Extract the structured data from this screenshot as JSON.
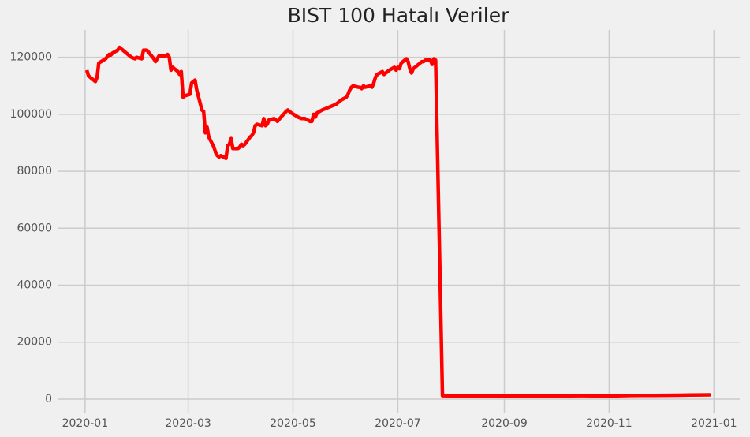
{
  "chart_data": {
    "type": "line",
    "title": "BIST 100 Hatalı Veriler",
    "color": "#ff0000",
    "grid": true,
    "xlim": [
      "2019-12-16",
      "2021-01-16"
    ],
    "ylim": [
      -5000,
      129600
    ],
    "xticks": [
      {
        "value": "2020-01-01",
        "label": "2020-01"
      },
      {
        "value": "2020-03-01",
        "label": "2020-03"
      },
      {
        "value": "2020-05-01",
        "label": "2020-05"
      },
      {
        "value": "2020-07-01",
        "label": "2020-07"
      },
      {
        "value": "2020-09-01",
        "label": "2020-09"
      },
      {
        "value": "2020-11-01",
        "label": "2020-11"
      },
      {
        "value": "2021-01-01",
        "label": "2021-01"
      }
    ],
    "yticks": [
      0,
      20000,
      40000,
      60000,
      80000,
      100000,
      120000
    ],
    "x": [
      "2020-01-02",
      "2020-01-03",
      "2020-01-06",
      "2020-01-07",
      "2020-01-08",
      "2020-01-09",
      "2020-01-13",
      "2020-01-15",
      "2020-01-16",
      "2020-01-17",
      "2020-01-20",
      "2020-01-21",
      "2020-01-23",
      "2020-01-24",
      "2020-01-27",
      "2020-01-28",
      "2020-01-30",
      "2020-01-31",
      "2020-02-03",
      "2020-02-04",
      "2020-02-06",
      "2020-02-10",
      "2020-02-11",
      "2020-02-12",
      "2020-02-13",
      "2020-02-17",
      "2020-02-18",
      "2020-02-19",
      "2020-02-20",
      "2020-02-21",
      "2020-02-24",
      "2020-02-25",
      "2020-02-26",
      "2020-02-27",
      "2020-02-28",
      "2020-03-02",
      "2020-03-03",
      "2020-03-04",
      "2020-03-05",
      "2020-03-06",
      "2020-03-09",
      "2020-03-10",
      "2020-03-11",
      "2020-03-12",
      "2020-03-13",
      "2020-03-16",
      "2020-03-17",
      "2020-03-18",
      "2020-03-19",
      "2020-03-20",
      "2020-03-23",
      "2020-03-24",
      "2020-03-25",
      "2020-03-26",
      "2020-03-27",
      "2020-03-30",
      "2020-03-31",
      "2020-04-01",
      "2020-04-02",
      "2020-04-03",
      "2020-04-06",
      "2020-04-07",
      "2020-04-08",
      "2020-04-09",
      "2020-04-10",
      "2020-04-13",
      "2020-04-14",
      "2020-04-15",
      "2020-04-16",
      "2020-04-17",
      "2020-04-20",
      "2020-04-21",
      "2020-04-22",
      "2020-04-24",
      "2020-04-27",
      "2020-04-28",
      "2020-04-29",
      "2020-04-30",
      "2020-05-04",
      "2020-05-06",
      "2020-05-08",
      "2020-05-11",
      "2020-05-12",
      "2020-05-13",
      "2020-05-14",
      "2020-05-15",
      "2020-05-18",
      "2020-05-20",
      "2020-05-22",
      "2020-05-26",
      "2020-05-28",
      "2020-05-29",
      "2020-06-01",
      "2020-06-02",
      "2020-06-03",
      "2020-06-04",
      "2020-06-05",
      "2020-06-08",
      "2020-06-09",
      "2020-06-10",
      "2020-06-11",
      "2020-06-12",
      "2020-06-15",
      "2020-06-16",
      "2020-06-17",
      "2020-06-18",
      "2020-06-19",
      "2020-06-22",
      "2020-06-23",
      "2020-06-24",
      "2020-06-25",
      "2020-06-26",
      "2020-06-29",
      "2020-06-30",
      "2020-07-01",
      "2020-07-02",
      "2020-07-03",
      "2020-07-06",
      "2020-07-07",
      "2020-07-08",
      "2020-07-09",
      "2020-07-10",
      "2020-07-13",
      "2020-07-14",
      "2020-07-15",
      "2020-07-16",
      "2020-07-17",
      "2020-07-20",
      "2020-07-21",
      "2020-07-22",
      "2020-07-23",
      "2020-07-27",
      "2020-07-31",
      "2020-08-07",
      "2020-08-14",
      "2020-08-21",
      "2020-08-28",
      "2020-09-04",
      "2020-09-11",
      "2020-09-18",
      "2020-09-25",
      "2020-10-02",
      "2020-10-09",
      "2020-10-16",
      "2020-10-23",
      "2020-10-30",
      "2020-11-06",
      "2020-11-13",
      "2020-11-20",
      "2020-11-27",
      "2020-12-04",
      "2020-12-11",
      "2020-12-18",
      "2020-12-25",
      "2020-12-30"
    ],
    "values": [
      115500,
      113500,
      112000,
      111500,
      113000,
      118000,
      119500,
      121000,
      120800,
      121500,
      122500,
      123500,
      122500,
      122000,
      120500,
      120000,
      119500,
      120000,
      119500,
      122500,
      122500,
      119500,
      118500,
      119500,
      120500,
      120500,
      121000,
      120000,
      115500,
      116500,
      115000,
      114000,
      115000,
      106000,
      106500,
      107000,
      111000,
      111500,
      112000,
      108500,
      101500,
      101000,
      93500,
      95500,
      92000,
      88500,
      86500,
      85500,
      85000,
      85500,
      84500,
      89000,
      89500,
      91500,
      88000,
      88000,
      88500,
      89500,
      89000,
      89500,
      92000,
      92500,
      93500,
      96000,
      96500,
      96000,
      98500,
      96000,
      96500,
      98000,
      98500,
      98000,
      97500,
      99000,
      101000,
      101500,
      101000,
      100500,
      99000,
      98500,
      98500,
      97500,
      97500,
      100000,
      99000,
      100500,
      101500,
      102000,
      102500,
      103500,
      104500,
      105000,
      106000,
      107000,
      108500,
      109500,
      110000,
      109500,
      109500,
      109000,
      110000,
      109500,
      110000,
      109500,
      111000,
      113000,
      114000,
      115000,
      114000,
      114500,
      115000,
      115500,
      116500,
      115500,
      116500,
      116000,
      118000,
      119500,
      118500,
      116000,
      114500,
      116000,
      117500,
      118000,
      118500,
      118500,
      119000,
      119000,
      117500,
      119500,
      119000,
      1200,
      1150,
      1120,
      1130,
      1120,
      1110,
      1150,
      1140,
      1160,
      1130,
      1160,
      1180,
      1190,
      1160,
      1100,
      1180,
      1250,
      1300,
      1290,
      1350,
      1380,
      1440,
      1470,
      1500
    ]
  }
}
